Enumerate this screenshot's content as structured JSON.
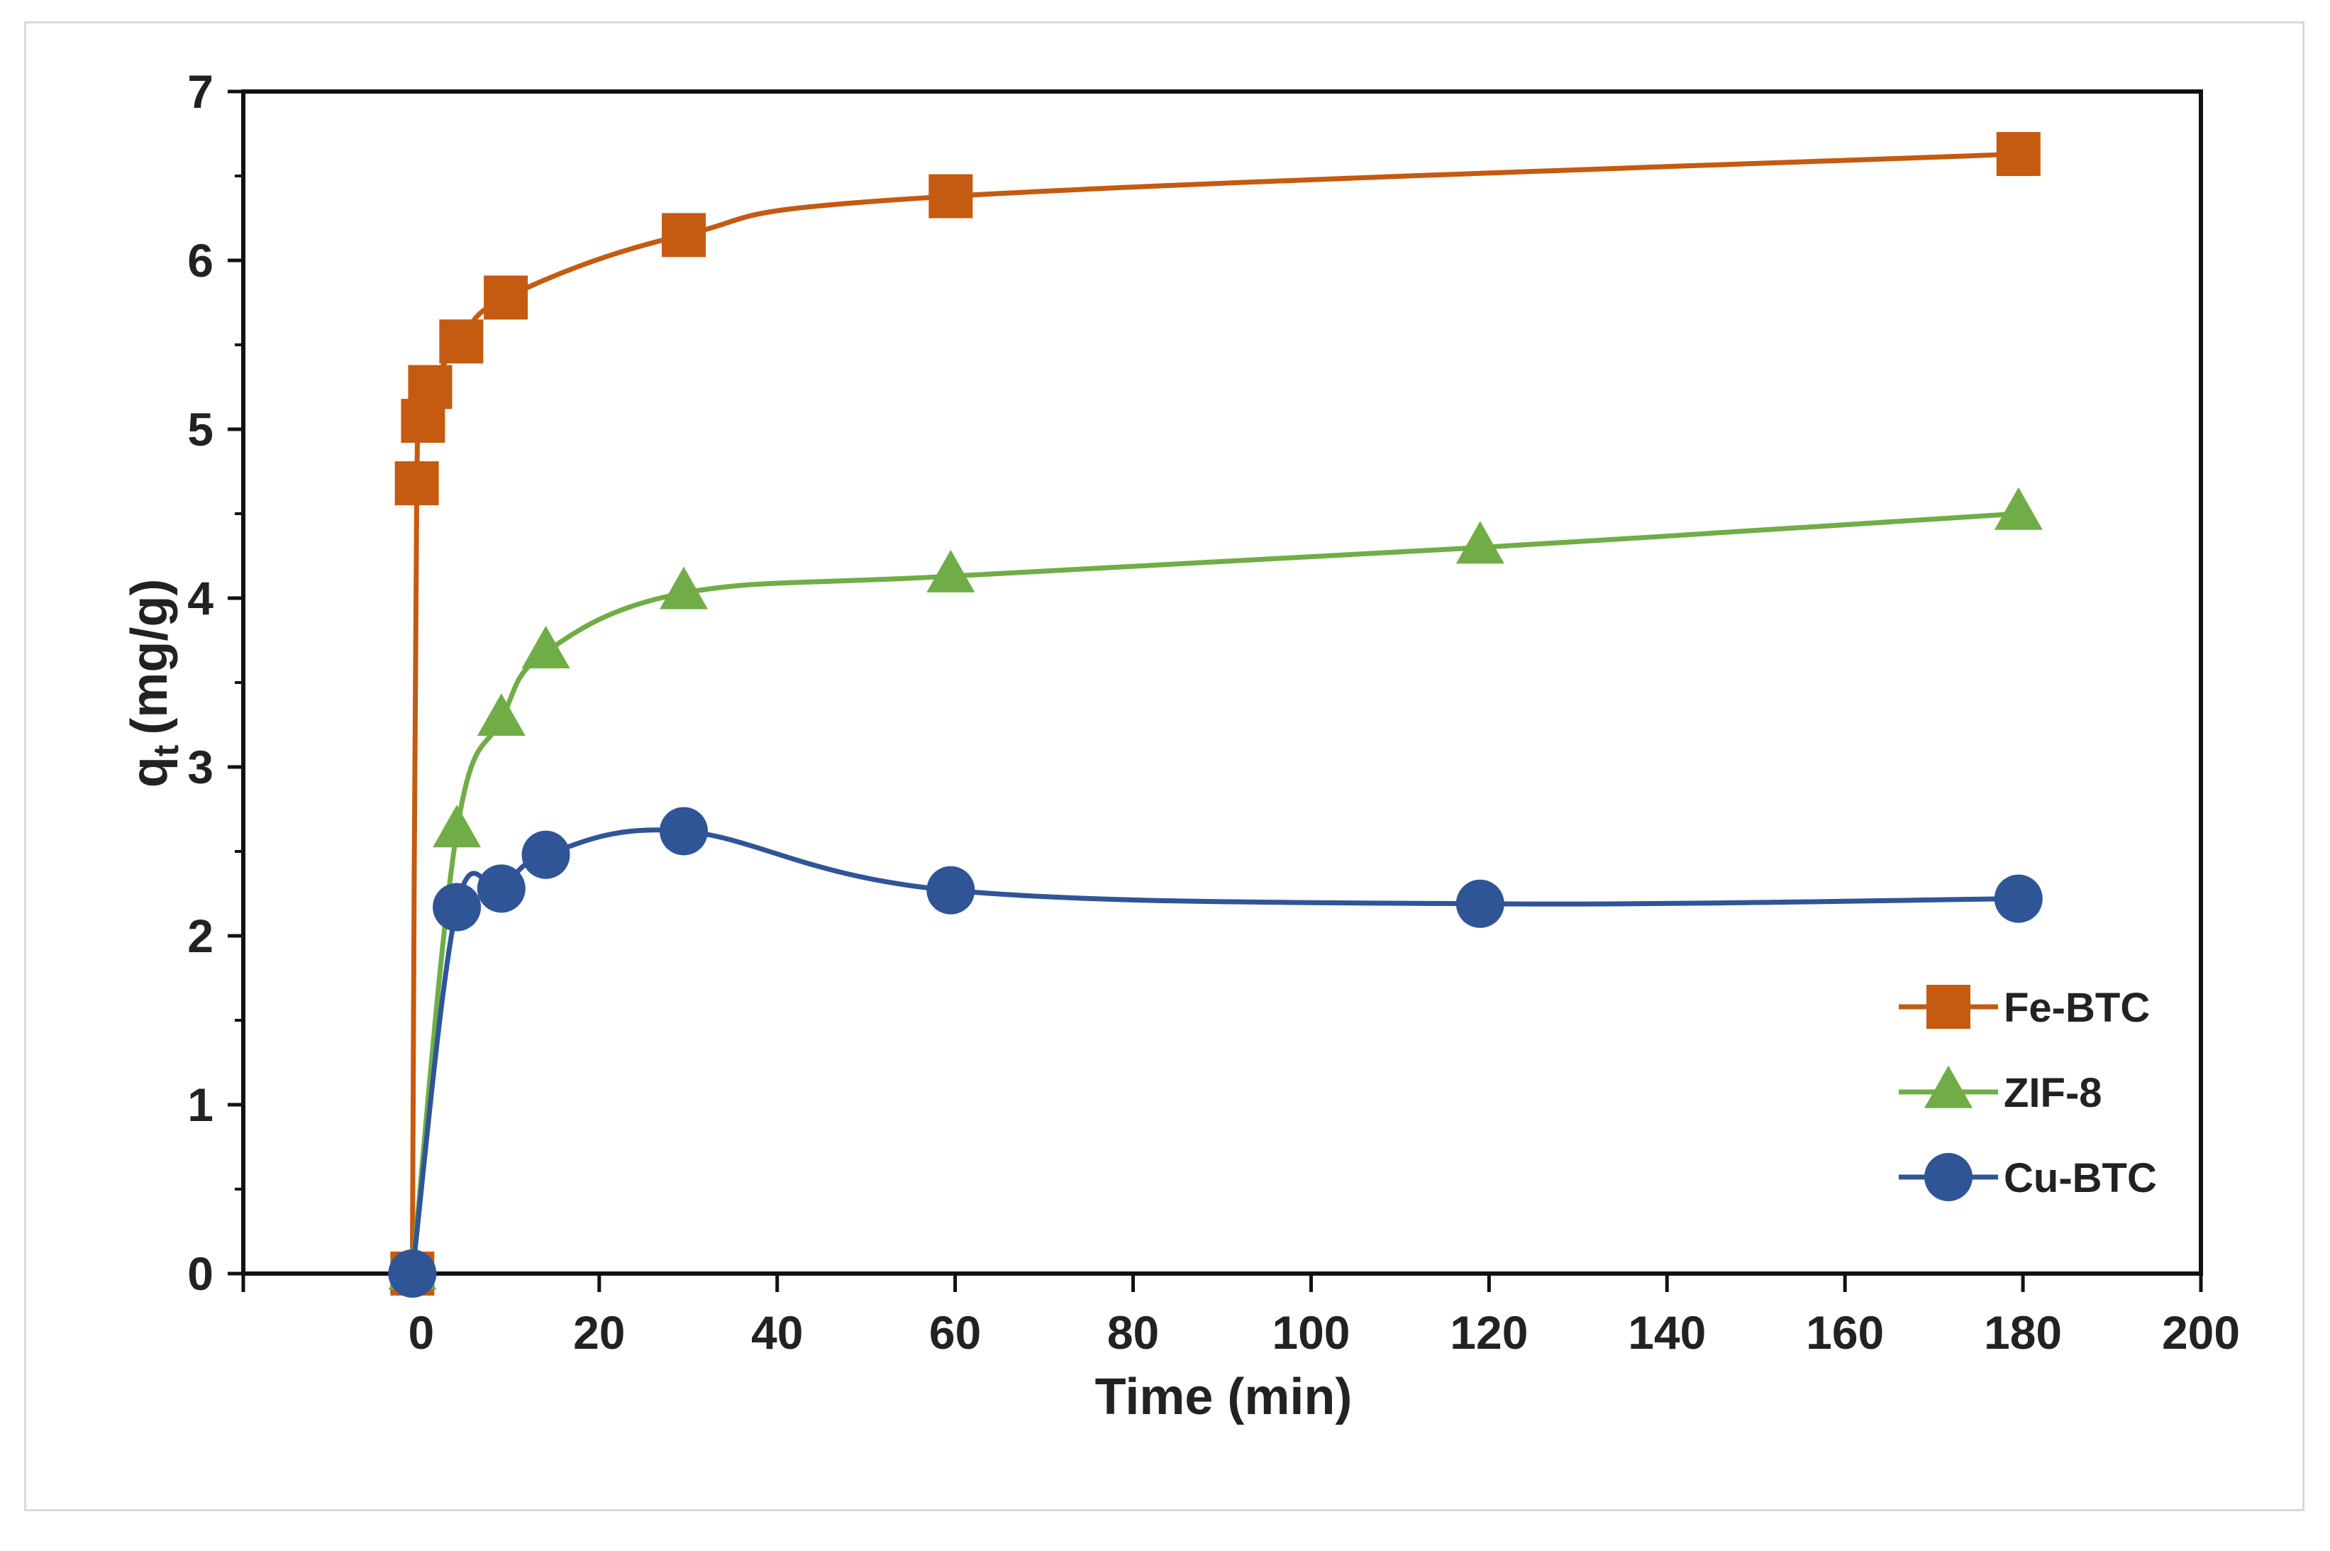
{
  "chart_data": {
    "type": "line",
    "title": "",
    "xlabel": "Time (min)",
    "ylabel_main": "q",
    "ylabel_sub": "t",
    "ylabel_unit": "(mg/g)",
    "xlim": [
      -20,
      200
    ],
    "ylim": [
      0,
      7
    ],
    "x_ticks": [
      0,
      20,
      40,
      60,
      80,
      100,
      120,
      140,
      160,
      180,
      200
    ],
    "y_ticks": [
      0,
      1,
      2,
      3,
      4,
      5,
      6,
      7
    ],
    "grid": false,
    "legend_position": "bottom-right",
    "series": [
      {
        "name": "Fe-BTC",
        "color": "#C55A11",
        "marker": "square",
        "points": [
          [
            -1,
            0
          ],
          [
            -0.5,
            4.68
          ],
          [
            0.2,
            5.05
          ],
          [
            1,
            5.25
          ],
          [
            4.5,
            5.52
          ],
          [
            9.5,
            5.78
          ],
          [
            29.5,
            6.15
          ],
          [
            59.5,
            6.38
          ],
          [
            179.5,
            6.63
          ]
        ]
      },
      {
        "name": "ZIF-8",
        "color": "#70AD47",
        "marker": "triangle",
        "points": [
          [
            -1,
            0
          ],
          [
            4,
            2.62
          ],
          [
            9,
            3.28
          ],
          [
            14,
            3.68
          ],
          [
            29.5,
            4.03
          ],
          [
            59.5,
            4.13
          ],
          [
            119,
            4.3
          ],
          [
            179.5,
            4.5
          ]
        ]
      },
      {
        "name": "Cu-BTC",
        "color": "#2F5597",
        "marker": "circle",
        "points": [
          [
            -1,
            0
          ],
          [
            4,
            2.17
          ],
          [
            9,
            2.28
          ],
          [
            14,
            2.48
          ],
          [
            29.5,
            2.62
          ],
          [
            59.5,
            2.27
          ],
          [
            119,
            2.19
          ],
          [
            179.5,
            2.22
          ]
        ]
      }
    ]
  }
}
